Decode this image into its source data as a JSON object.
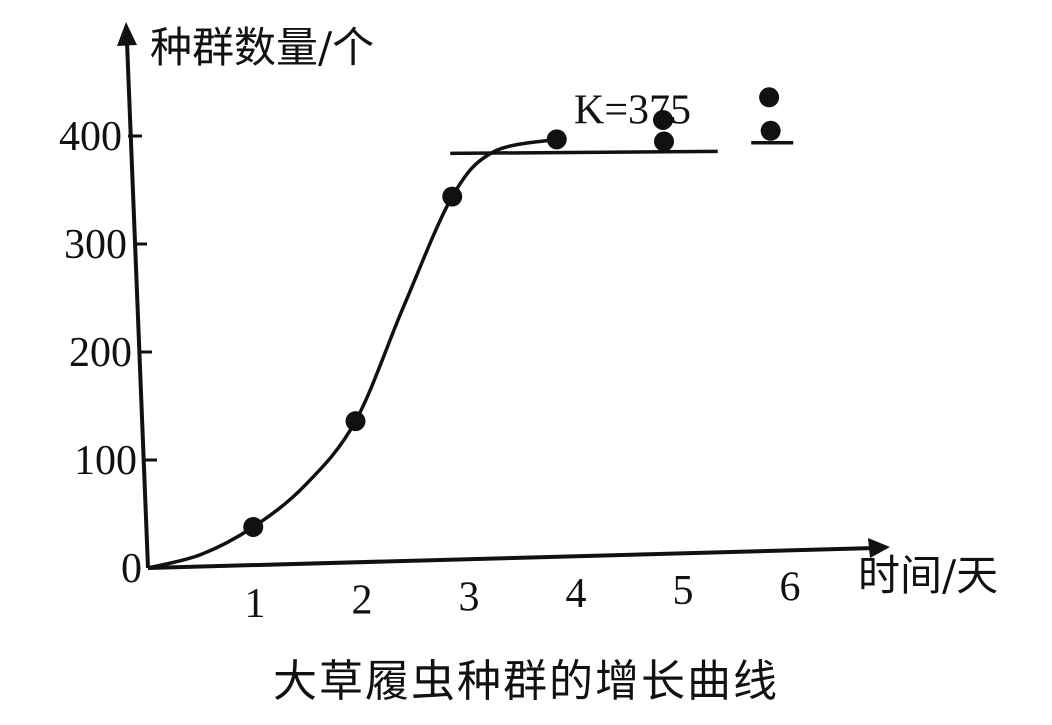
{
  "chart_data": {
    "type": "scatter",
    "title": "大草履虫种群的增长曲线",
    "xlabel": "时间/天",
    "ylabel": "种群数量/个",
    "x_ticks": [
      "1",
      "2",
      "3",
      "4",
      "5",
      "6"
    ],
    "y_ticks": [
      "0",
      "100",
      "200",
      "300",
      "400"
    ],
    "xlim": [
      0,
      6.6
    ],
    "ylim": [
      0,
      400
    ],
    "points": [
      {
        "x": 1,
        "y": 35
      },
      {
        "x": 2,
        "y": 130
      },
      {
        "x": 3,
        "y": 335
      },
      {
        "x": 4,
        "y": 385
      },
      {
        "x": 5,
        "y": 400
      },
      {
        "x": 5,
        "y": 380
      },
      {
        "x": 6,
        "y": 418
      },
      {
        "x": 6,
        "y": 387
      }
    ],
    "curve": [
      {
        "x": 0,
        "y": 0
      },
      {
        "x": 0.5,
        "y": 11
      },
      {
        "x": 1,
        "y": 35
      },
      {
        "x": 1.5,
        "y": 72
      },
      {
        "x": 2,
        "y": 130
      },
      {
        "x": 2.5,
        "y": 235
      },
      {
        "x": 3,
        "y": 335
      },
      {
        "x": 3.4,
        "y": 375
      },
      {
        "x": 4,
        "y": 385
      }
    ],
    "reference_line": {
      "label": "K=375",
      "y": 375,
      "x_range": [
        3,
        5.5
      ]
    },
    "grid": false,
    "legend": "none"
  }
}
